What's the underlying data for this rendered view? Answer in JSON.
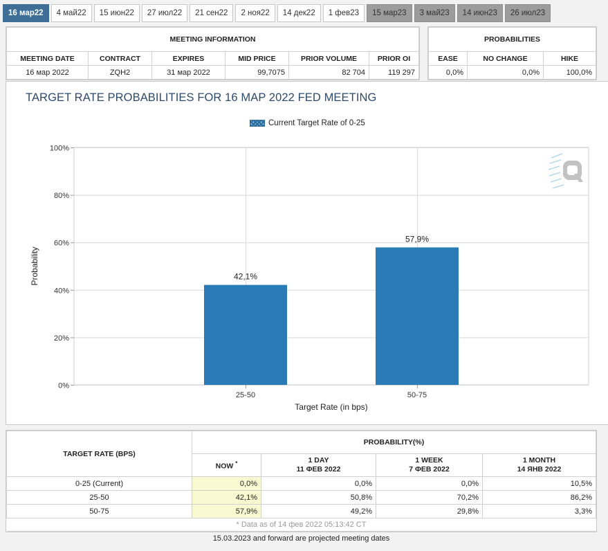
{
  "tabs": [
    {
      "label": "16 мар22",
      "state": "active"
    },
    {
      "label": "4 май22",
      "state": "normal"
    },
    {
      "label": "15 июн22",
      "state": "normal"
    },
    {
      "label": "27 июл22",
      "state": "normal"
    },
    {
      "label": "21 сен22",
      "state": "normal"
    },
    {
      "label": "2 ноя22",
      "state": "normal"
    },
    {
      "label": "14 дек22",
      "state": "normal"
    },
    {
      "label": "1 фев23",
      "state": "normal"
    },
    {
      "label": "15 мар23",
      "state": "projected"
    },
    {
      "label": "3 май23",
      "state": "projected"
    },
    {
      "label": "14 июн23",
      "state": "projected"
    },
    {
      "label": "26 июл23",
      "state": "projected"
    }
  ],
  "meeting_info": {
    "title": "MEETING INFORMATION",
    "headers": {
      "date": "MEETING DATE",
      "contract": "CONTRACT",
      "expires": "EXPIRES",
      "mid": "MID PRICE",
      "volume": "PRIOR VOLUME",
      "oi": "PRIOR OI"
    },
    "row": {
      "date": "16 мар 2022",
      "contract": "ZQH2",
      "expires": "31 мар 2022",
      "mid": "99,7075",
      "volume": "82 704",
      "oi": "119 297"
    }
  },
  "probabilities": {
    "title": "PROBABILITIES",
    "headers": {
      "ease": "EASE",
      "no_change": "NO CHANGE",
      "hike": "HIKE"
    },
    "row": {
      "ease": "0,0%",
      "no_change": "0,0%",
      "hike": "100,0%"
    }
  },
  "colors": {
    "bar": "#2b7bb9",
    "active_tab": "#3f6e96",
    "title": "#2d4a6b",
    "now_cell": "#fafad2"
  },
  "chart_data": {
    "type": "bar",
    "title": "TARGET RATE PROBABILITIES FOR 16 MAP 2022 FED MEETING",
    "legend": "Current Target Rate of 0-25",
    "legend_position": "top-center",
    "xlabel": "Target Rate (in bps)",
    "ylabel": "Probability",
    "categories": [
      "25-50",
      "50-75"
    ],
    "values": [
      42.1,
      57.9
    ],
    "value_labels": [
      "42,1%",
      "57,9%"
    ],
    "ylim": [
      0,
      100
    ],
    "yticks": [
      0,
      20,
      40,
      60,
      80,
      100
    ],
    "ytick_labels": [
      "0%",
      "20%",
      "40%",
      "60%",
      "80%",
      "100%"
    ],
    "grid": true,
    "watermark_icon": "q-logo-icon"
  },
  "prob_table": {
    "header_target": "TARGET RATE (BPS)",
    "header_group": "PROBABILITY(%)",
    "columns": [
      {
        "line1": "NOW",
        "line2": "",
        "mark": "*"
      },
      {
        "line1": "1 DAY",
        "line2": "11 ФЕВ 2022",
        "mark": ""
      },
      {
        "line1": "1 WEEK",
        "line2": "7 ФЕВ 2022",
        "mark": ""
      },
      {
        "line1": "1 MONTH",
        "line2": "14 ЯНВ 2022",
        "mark": ""
      }
    ],
    "rows": [
      {
        "rate": "0-25 (Current)",
        "values": [
          "0,0%",
          "0,0%",
          "0,0%",
          "10,5%"
        ]
      },
      {
        "rate": "25-50",
        "values": [
          "42,1%",
          "50,8%",
          "70,2%",
          "86,2%"
        ]
      },
      {
        "rate": "50-75",
        "values": [
          "57,9%",
          "49,2%",
          "29,8%",
          "3,3%"
        ]
      }
    ],
    "note": "* Data as of 14 фев 2022 05:13:42 CT"
  },
  "footer": "15.03.2023 and forward are projected meeting dates"
}
